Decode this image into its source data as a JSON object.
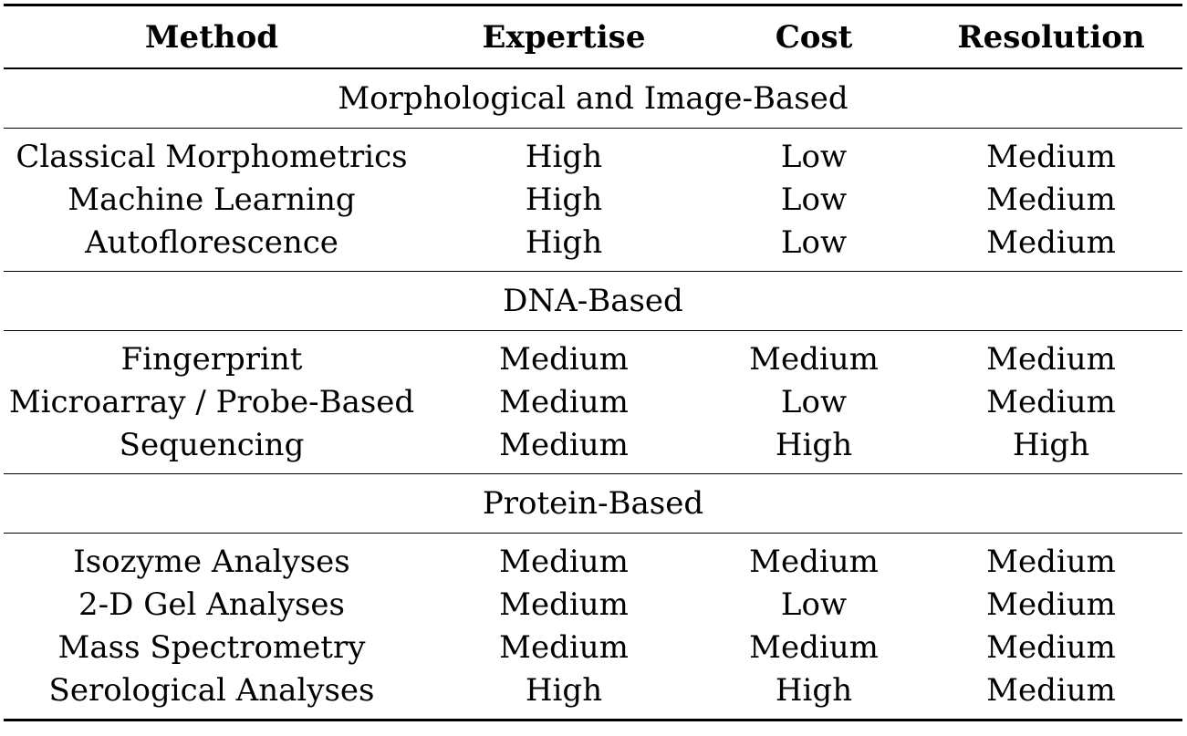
{
  "columns": [
    "Method",
    "Expertise",
    "Cost",
    "Resolution"
  ],
  "groups": [
    {
      "title": "Morphological and Image-Based",
      "rows": [
        [
          "Classical Morphometrics",
          "High",
          "Low",
          "Medium"
        ],
        [
          "Machine Learning",
          "High",
          "Low",
          "Medium"
        ],
        [
          "Autoflorescence",
          "High",
          "Low",
          "Medium"
        ]
      ]
    },
    {
      "title": "DNA-Based",
      "rows": [
        [
          "Fingerprint",
          "Medium",
          "Medium",
          "Medium"
        ],
        [
          "Microarray / Probe-Based",
          "Medium",
          "Low",
          "Medium"
        ],
        [
          "Sequencing",
          "Medium",
          "High",
          "High"
        ]
      ]
    },
    {
      "title": "Protein-Based",
      "rows": [
        [
          "Isozyme Analyses",
          "Medium",
          "Medium",
          "Medium"
        ],
        [
          "2-D Gel Analyses",
          "Medium",
          "Low",
          "Medium"
        ],
        [
          "Mass Spectrometry",
          "Medium",
          "Medium",
          "Medium"
        ],
        [
          "Serological Analyses",
          "High",
          "High",
          "Medium"
        ]
      ]
    }
  ]
}
